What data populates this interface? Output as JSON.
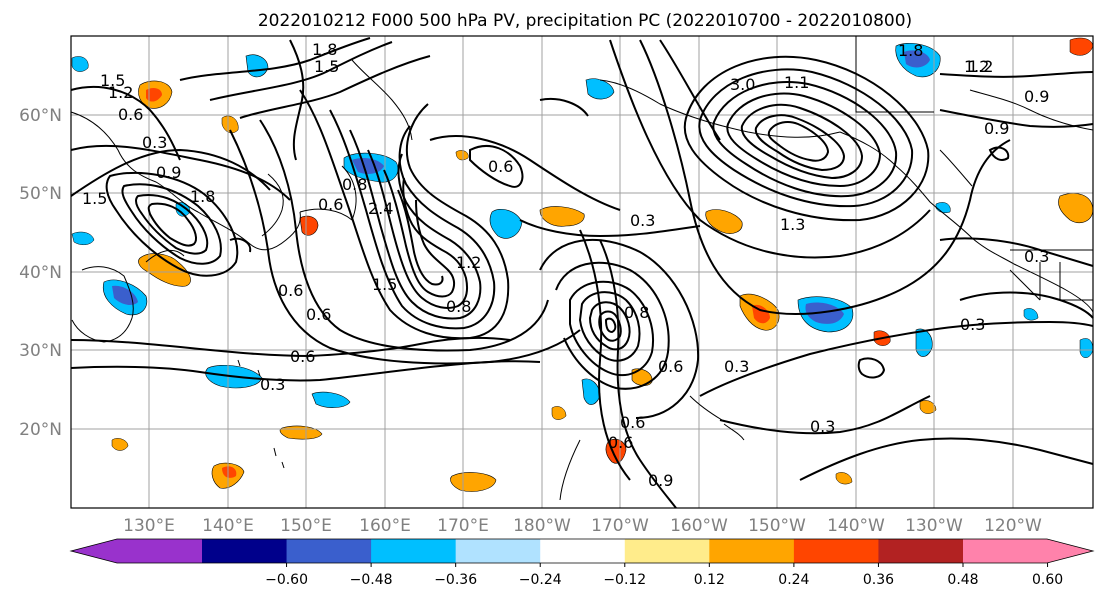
{
  "figure": {
    "title": "2022010212 F000 500 hPa PV, precipitation PC (2022010700 - 2022010800)"
  },
  "map": {
    "lon_labels": [
      "130°E",
      "140°E",
      "150°E",
      "160°E",
      "170°E",
      "180°W",
      "170°W",
      "160°W",
      "150°W",
      "140°W",
      "130°W",
      "120°W"
    ],
    "lat_labels": [
      "60°N",
      "50°N",
      "40°N",
      "30°N",
      "20°N"
    ],
    "contour_labels": [
      "1.8",
      "1.5",
      "1.2",
      "1.5",
      "0.6",
      "0.3",
      "0.9",
      "1.8",
      "1.5",
      "1.2",
      "0.6",
      "0.6",
      "0.6",
      "0.8",
      "2.4",
      "1.5",
      "1.2",
      "0.8",
      "0.6",
      "0.3",
      "0.6",
      "0.3",
      "0.6",
      "0.8",
      "0.6",
      "0.6",
      "0.9",
      "3.0",
      "1.1",
      "0.9",
      "0.9",
      "1.2",
      "1.8",
      "0.3",
      "0.3",
      "0.3",
      "0.3",
      "1.3"
    ]
  },
  "colorbar": {
    "tick_labels": [
      "−0.60",
      "−0.48",
      "−0.36",
      "−0.24",
      "−0.12",
      "0.12",
      "0.24",
      "0.36",
      "0.48",
      "0.60"
    ],
    "colors": [
      "#9932CC",
      "#00008B",
      "#3A5FCD",
      "#00BFFF",
      "#B0E2FF",
      "#FFFFFF",
      "#FFEC8B",
      "#FFA500",
      "#FF4500",
      "#B22222",
      "#FF82AB"
    ]
  },
  "colors": {
    "neg_strong": "#3A5FCD",
    "neg_mid": "#00BFFF",
    "neg_weak": "#B0E2FF",
    "pos_weak": "#FFEC8B",
    "pos_mid": "#FFA500",
    "pos_strong": "#FF4500",
    "grid": "#A0A0A0"
  }
}
